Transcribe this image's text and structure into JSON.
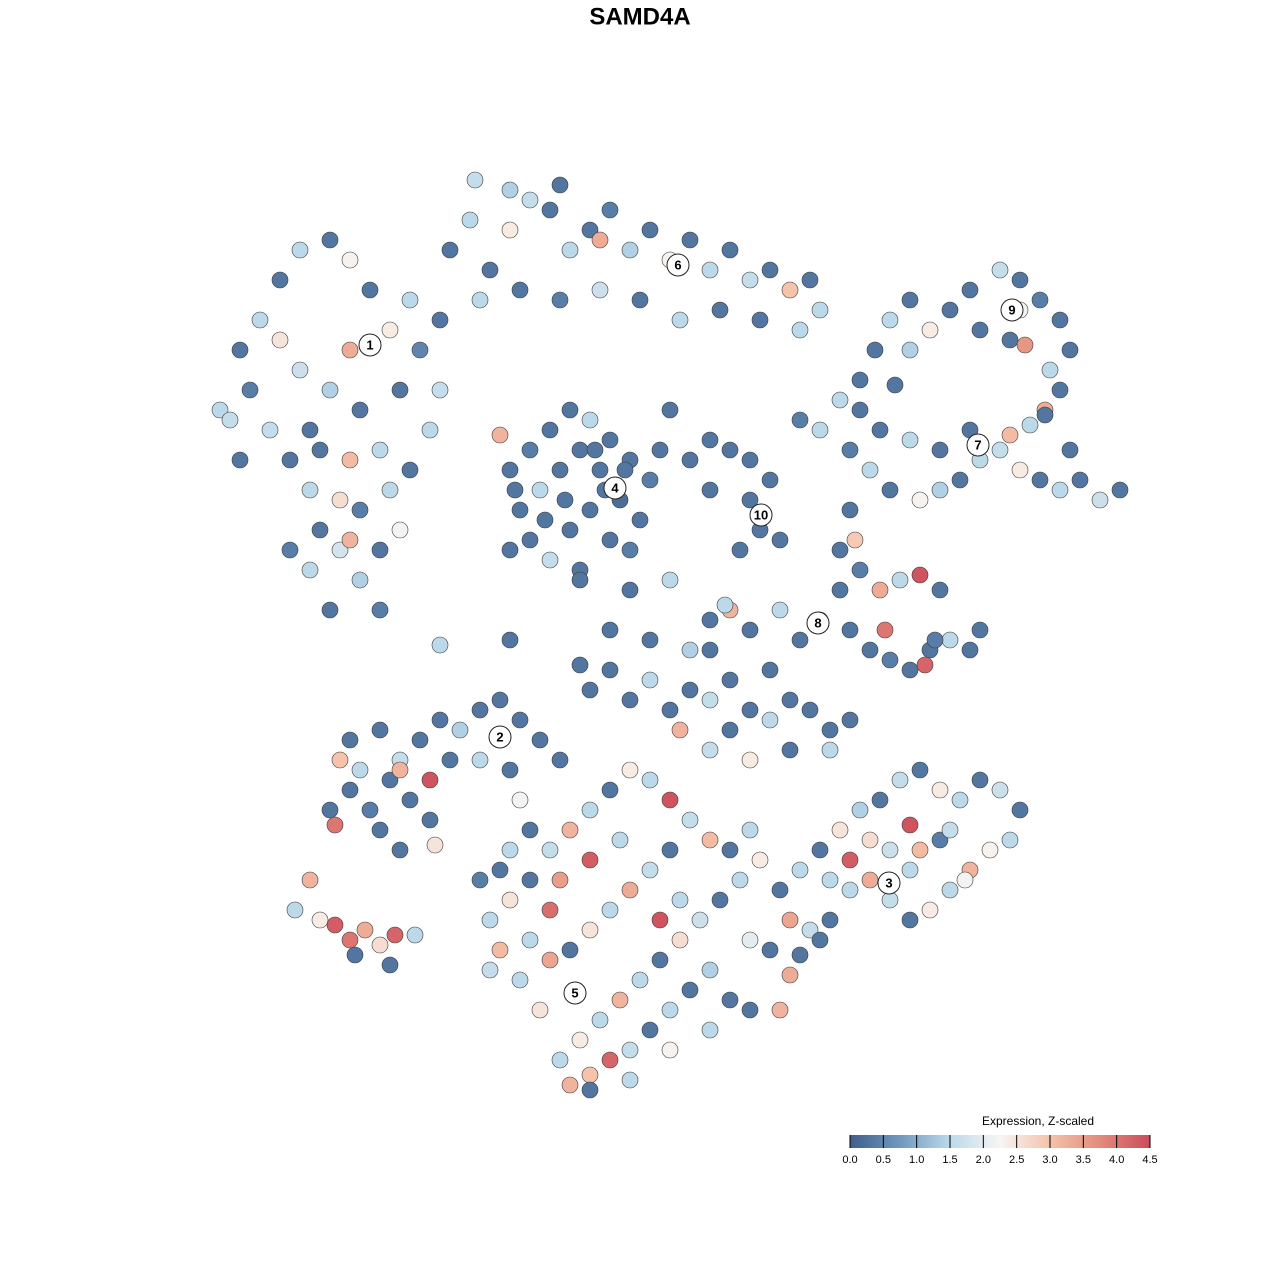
{
  "chart_data": {
    "type": "scatter",
    "title": "SAMD4A",
    "xlim": [
      0,
      1000
    ],
    "ylim": [
      0,
      1000
    ],
    "color_label": "Expression, Z-scaled",
    "colorlim": [
      0,
      4.5
    ],
    "colormap": [
      "#3e5f8a",
      "#6f98c0",
      "#bcd9ea",
      "#f7f5f3",
      "#f5c2aa",
      "#e38b7b",
      "#cc4c5c"
    ],
    "colorticks": [
      {
        "value": 0,
        "label": "0.0"
      },
      0.5,
      {
        "value": 1,
        "label": "1.0"
      },
      1.5,
      {
        "value": 2,
        "label": "2.0"
      },
      2.5,
      {
        "value": 3,
        "label": "3.0"
      },
      3.5,
      {
        "value": 4,
        "label": "4.0"
      },
      4.5
    ],
    "x": [
      70,
      90,
      110,
      130,
      150,
      180,
      200,
      100,
      120,
      140,
      160,
      170,
      190,
      210,
      230,
      250,
      240,
      260,
      220,
      200,
      180,
      160,
      150,
      130,
      210,
      240,
      230,
      210,
      230,
      200,
      270,
      280,
      260,
      190,
      170,
      140,
      160,
      180,
      200,
      90,
      80,
      250,
      290,
      290,
      300,
      320,
      340,
      360,
      380,
      400,
      420,
      440,
      460,
      480,
      500,
      520,
      540,
      560,
      580,
      600,
      620,
      640,
      660,
      670,
      330,
      370,
      410,
      450,
      490,
      530,
      570,
      610,
      650,
      450,
      325,
      410,
      360,
      360,
      380,
      400,
      420,
      440,
      460,
      480,
      500,
      370,
      390,
      410,
      430,
      450,
      470,
      490,
      380,
      400,
      420,
      440,
      460,
      480,
      430,
      360,
      350,
      510,
      520,
      395,
      415,
      455,
      475,
      365,
      445,
      540,
      560,
      580,
      600,
      620,
      600,
      610,
      590,
      630,
      650,
      670,
      560,
      690,
      710,
      730,
      760,
      790,
      820,
      850,
      870,
      890,
      910,
      930,
      950,
      970,
      700,
      720,
      740,
      770,
      790,
      810,
      830,
      860,
      880,
      920,
      895,
      745,
      710,
      740,
      760,
      780,
      800,
      820,
      850,
      870,
      890,
      910,
      920,
      900,
      860,
      830,
      870,
      875,
      910,
      895,
      725,
      760,
      670,
      690,
      710,
      730,
      750,
      770,
      790,
      700,
      720,
      740,
      760,
      780,
      800,
      820,
      830,
      775,
      735,
      690,
      700,
      705,
      785,
      560,
      600,
      630,
      650,
      580,
      520,
      480,
      560,
      440,
      460,
      480,
      500,
      520,
      540,
      560,
      580,
      600,
      620,
      640,
      660,
      680,
      700,
      580,
      460,
      500,
      540,
      620,
      530,
      560,
      600,
      640,
      680,
      180,
      200,
      220,
      240,
      260,
      280,
      250,
      230,
      210,
      200,
      230,
      250,
      270,
      290,
      310,
      330,
      350,
      370,
      390,
      410,
      360,
      330,
      300,
      190,
      250,
      280,
      185,
      285,
      630,
      650,
      670,
      690,
      710,
      730,
      750,
      770,
      790,
      810,
      830,
      850,
      870,
      860,
      840,
      820,
      800,
      780,
      760,
      740,
      720,
      700,
      680,
      660,
      640,
      700,
      760,
      770,
      790,
      740,
      720,
      680,
      760,
      800,
      815,
      670,
      650,
      640,
      340,
      360,
      380,
      400,
      420,
      440,
      460,
      480,
      500,
      520,
      540,
      560,
      580,
      600,
      610,
      590,
      570,
      550,
      530,
      510,
      490,
      470,
      450,
      430,
      410,
      440,
      460,
      480,
      500,
      520,
      540,
      560,
      580,
      600,
      560,
      520,
      480,
      440,
      420,
      390,
      370,
      350,
      340,
      400,
      380,
      420,
      440,
      460,
      480,
      500,
      520,
      400,
      440,
      470,
      380,
      360,
      350,
      330,
      510,
      530,
      620,
      630,
      600,
      410,
      370,
      145,
      160,
      170,
      185,
      200,
      215,
      230,
      245,
      265,
      205,
      240,
      290,
      360,
      430,
      430,
      575
    ],
    "y": [
      740,
      800,
      830,
      870,
      900,
      910,
      890,
      760,
      720,
      690,
      660,
      620,
      600,
      640,
      700,
      760,
      820,
      850,
      860,
      800,
      760,
      720,
      780,
      810,
      740,
      660,
      600,
      570,
      540,
      690,
      800,
      720,
      680,
      650,
      700,
      600,
      580,
      540,
      610,
      690,
      730,
      620,
      830,
      760,
      900,
      930,
      880,
      920,
      950,
      940,
      900,
      920,
      940,
      900,
      920,
      890,
      910,
      880,
      900,
      870,
      880,
      860,
      870,
      840,
      850,
      860,
      850,
      860,
      850,
      830,
      840,
      830,
      820,
      910,
      970,
      965,
      960,
      680,
      700,
      720,
      740,
      730,
      710,
      690,
      670,
      640,
      660,
      680,
      700,
      680,
      650,
      630,
      610,
      590,
      620,
      640,
      610,
      600,
      580,
      600,
      715,
      700,
      740,
      630,
      650,
      660,
      680,
      660,
      700,
      690,
      710,
      700,
      690,
      670,
      650,
      620,
      600,
      610,
      730,
      720,
      660,
      750,
      740,
      720,
      710,
      700,
      720,
      700,
      680,
      670,
      660,
      670,
      650,
      660,
      700,
      680,
      660,
      650,
      660,
      670,
      690,
      715,
      725,
      700,
      740,
      765,
      770,
      830,
      850,
      820,
      840,
      860,
      880,
      870,
      850,
      830,
      800,
      780,
      810,
      820,
      840,
      805,
      760,
      735,
      800,
      800,
      530,
      560,
      580,
      560,
      570,
      575,
      560,
      520,
      500,
      490,
      480,
      500,
      510,
      500,
      520,
      485,
      520,
      600,
      640,
      610,
      510,
      530,
      520,
      540,
      510,
      540,
      570,
      560,
      500,
      460,
      480,
      450,
      470,
      440,
      460,
      450,
      470,
      440,
      430,
      450,
      440,
      420,
      430,
      420,
      520,
      510,
      500,
      480,
      420,
      400,
      390,
      400,
      400,
      340,
      360,
      340,
      370,
      350,
      330,
      300,
      320,
      380,
      410,
      420,
      390,
      410,
      430,
      420,
      440,
      450,
      430,
      410,
      390,
      380,
      390,
      390,
      390,
      380,
      370,
      325,
      305,
      260,
      280,
      300,
      320,
      340,
      350,
      370,
      380,
      360,
      350,
      370,
      360,
      340,
      310,
      300,
      280,
      260,
      240,
      230,
      250,
      270,
      260,
      230,
      220,
      230,
      290,
      280,
      300,
      310,
      300,
      310,
      270,
      325,
      320,
      270,
      210,
      195,
      175,
      230,
      250,
      270,
      300,
      320,
      340,
      360,
      380,
      370,
      350,
      330,
      310,
      300,
      320,
      290,
      270,
      250,
      230,
      210,
      190,
      170,
      150,
      130,
      110,
      90,
      75,
      90,
      100,
      120,
      140,
      160,
      180,
      150,
      140,
      120,
      100,
      70,
      60,
      65,
      140,
      170,
      200,
      180,
      190,
      210,
      200,
      220,
      240,
      260,
      280,
      300,
      240,
      290,
      310,
      320,
      300,
      280,
      270,
      230,
      250,
      200,
      140,
      210,
      270,
      350,
      240,
      270,
      230,
      225,
      210,
      220,
      205,
      215,
      215,
      195,
      185,
      505,
      510,
      570,
      485,
      545
    ],
    "values": [
      1.5,
      0.3,
      1.5,
      0.3,
      1.5,
      0.3,
      2.3,
      0.4,
      1.6,
      0.3,
      1.5,
      0.3,
      1.8,
      0.4,
      1.5,
      0.3,
      2.4,
      1.5,
      0.3,
      3.3,
      1.4,
      0.3,
      1.7,
      2.5,
      0.3,
      1.5,
      0.3,
      1.4,
      0.4,
      3.1,
      0.5,
      1.5,
      0.3,
      2.6,
      0.3,
      0.4,
      1.5,
      0.3,
      3.2,
      0.3,
      1.6,
      2.2,
      0.3,
      1.6,
      0.3,
      1.5,
      0.3,
      2.4,
      1.6,
      0.3,
      1.5,
      0.3,
      0.4,
      1.4,
      0.3,
      2.3,
      0.3,
      1.5,
      0.3,
      1.6,
      0.3,
      3.0,
      0.3,
      1.5,
      1.5,
      0.3,
      0.4,
      1.7,
      0.3,
      1.5,
      0.3,
      0.3,
      1.5,
      3.3,
      1.6,
      0.3,
      1.4,
      0.3,
      0.4,
      0.3,
      0.3,
      1.5,
      0.3,
      0.3,
      0.4,
      0.3,
      1.5,
      0.3,
      0.3,
      0.3,
      0.2,
      0.3,
      0.3,
      1.6,
      0.3,
      0.3,
      0.3,
      0.4,
      0.3,
      0.3,
      3.2,
      0.3,
      0.3,
      0.3,
      0.3,
      0.3,
      0.3,
      0.3,
      0.3,
      0.3,
      0.3,
      0.3,
      0.3,
      0.3,
      0.3,
      0.3,
      0.3,
      0.3,
      0.4,
      1.5,
      0.3,
      1.5,
      0.3,
      0.3,
      1.5,
      0.3,
      0.3,
      1.6,
      2.4,
      0.3,
      1.5,
      0.3,
      1.7,
      0.3,
      0.4,
      1.5,
      0.3,
      2.3,
      1.4,
      0.3,
      1.5,
      3.1,
      1.5,
      0.3,
      3.3,
      0.3,
      0.3,
      1.5,
      0.3,
      2.4,
      0.3,
      0.3,
      1.6,
      0.3,
      0.4,
      0.3,
      0.3,
      1.5,
      0.3,
      0.3,
      2.2,
      3.6,
      0.3,
      0.3,
      0.3,
      1.4,
      0.3,
      0.3,
      0.4,
      3.3,
      1.5,
      4.4,
      0.3,
      0.3,
      0.3,
      0.4,
      0.3,
      0.3,
      1.5,
      0.3,
      0.3,
      4.2,
      4.0,
      0.3,
      0.3,
      2.9,
      0.4,
      0.3,
      0.3,
      1.5,
      0.3,
      3.2,
      1.5,
      0.3,
      0.3,
      0.3,
      0.3,
      0.3,
      1.5,
      0.3,
      0.3,
      1.6,
      0.3,
      0.3,
      1.5,
      0.3,
      0.3,
      0.3,
      0.3,
      0.3,
      0.3,
      0.3,
      1.4,
      0.3,
      3.2,
      1.6,
      2.4,
      0.3,
      1.5,
      0.3,
      0.3,
      0.4,
      0.3,
      0.3,
      0.3,
      0.3,
      0.3,
      1.5,
      0.3,
      0.3,
      1.6,
      0.3,
      0.3,
      1.4,
      0.3,
      0.3,
      0.3,
      0.3,
      0.3,
      0.3,
      1.5,
      0.3,
      3.0,
      3.2,
      4.4,
      4.0,
      2.5,
      0.3,
      1.5,
      0.3,
      2.5,
      1.4,
      0.3,
      1.6,
      0.3,
      2.4,
      1.5,
      0.3,
      1.7,
      0.3,
      1.5,
      2.3,
      3.2,
      1.5,
      2.4,
      0.3,
      1.6,
      3.3,
      1.5,
      0.3,
      1.6,
      3.4,
      4.3,
      1.5,
      3.1,
      0.4,
      1.7,
      2.6,
      1.5,
      4.4,
      1.6,
      2.2,
      0.3,
      0.3,
      3.3,
      1.5,
      2.5,
      0.3,
      1.6,
      3.2,
      1.5,
      0.3,
      2.4,
      1.5,
      4.4,
      1.6,
      3.1,
      0.3,
      1.5,
      2.4,
      1.5,
      0.3,
      1.7,
      2.6,
      0.3,
      1.5,
      3.2,
      1.5,
      2.4,
      1.5,
      3.0,
      4.2,
      1.6,
      0.3,
      1.5,
      0.3,
      1.4,
      0.3,
      0.3,
      1.5,
      2.3,
      1.5,
      0.3,
      3.2,
      2.5,
      1.5,
      3.1,
      1.6,
      3.4,
      1.5,
      0.3,
      2.5,
      1.5,
      3.3,
      1.6,
      0.3,
      4.1,
      4.3,
      1.5,
      0.3,
      1.5,
      0.3,
      0.4,
      4.4,
      1.5,
      0.3,
      3.2,
      2.0,
      3.5,
      2.2,
      1.5,
      3.2,
      2.4,
      4.3,
      4.0,
      3.3,
      2.6,
      4.2,
      1.5,
      0.3,
      0.3,
      1.5,
      0.3,
      0.3,
      0.3,
      1.5
    ],
    "annotations": [
      {
        "label": "1",
        "x": 220,
        "y": 805
      },
      {
        "label": "2",
        "x": 350,
        "y": 413
      },
      {
        "label": "3",
        "x": 739,
        "y": 267
      },
      {
        "label": "4",
        "x": 465,
        "y": 662
      },
      {
        "label": "5",
        "x": 425,
        "y": 157
      },
      {
        "label": "6",
        "x": 528,
        "y": 885
      },
      {
        "label": "7",
        "x": 828,
        "y": 705
      },
      {
        "label": "8",
        "x": 668,
        "y": 527
      },
      {
        "label": "9",
        "x": 862,
        "y": 840
      },
      {
        "label": "10",
        "x": 611,
        "y": 635
      }
    ]
  }
}
